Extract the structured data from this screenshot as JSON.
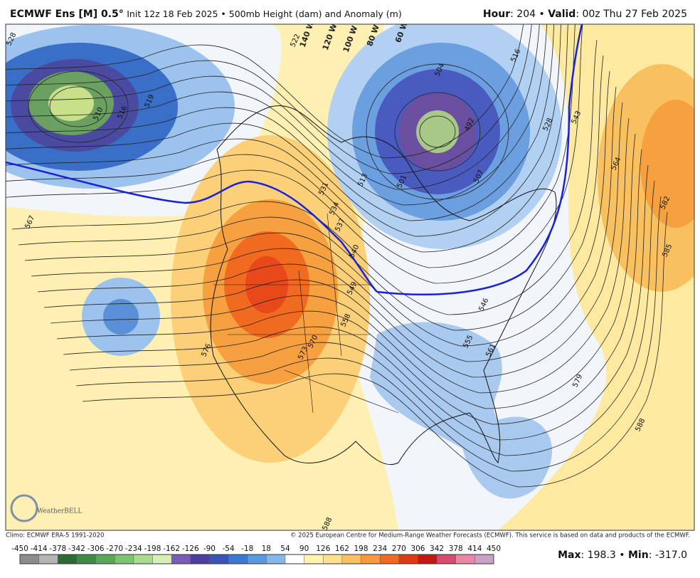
{
  "header": {
    "title": "ECMWF Ens [M] 0.5°",
    "subtitle": "Init 12z 18 Feb 2025 • 500mb Height (dam) and Anomaly (m)",
    "hour_label": "Hour",
    "hour_text": ": 204 • ",
    "valid_label": "Valid",
    "valid_text": ": 00z Thu 27 Feb 2025"
  },
  "map": {
    "contour_labels": [
      528,
      510,
      516,
      519,
      567,
      504,
      492,
      501,
      507,
      516,
      528,
      543,
      564,
      582,
      585,
      531,
      534,
      537,
      540,
      549,
      558,
      570,
      573,
      576,
      561,
      555,
      546,
      579,
      588,
      588,
      522,
      513
    ],
    "longitude_labels": [
      "140 W",
      "120 W",
      "100 W",
      "80 W",
      "60 W"
    ],
    "logo": "WeatherBELL"
  },
  "footer": {
    "climo": "Climo: ECMWF ERA-5 1991-2020",
    "copyright": "© 2025 European Centre for Medium-Range Weather Forecasts (ECMWF). This service is based on data and products of the ECMWF."
  },
  "colorbar": {
    "ticks": [
      -450,
      -414,
      -378,
      -342,
      -306,
      -270,
      -234,
      -198,
      -162,
      -126,
      -90,
      -54,
      -18,
      18,
      54,
      90,
      126,
      162,
      198,
      234,
      270,
      306,
      342,
      378,
      414,
      450
    ],
    "colors": [
      "#8c8c8c",
      "#b4b4b4",
      "#2e6b34",
      "#3f8a45",
      "#5aa85a",
      "#7cc470",
      "#a9dc8e",
      "#d5efb4",
      "#7a5bb5",
      "#4a3f9e",
      "#3a54b8",
      "#3d78d0",
      "#5a98e0",
      "#85b7ec",
      "#ffffff",
      "#fff3b0",
      "#fde08a",
      "#fbc060",
      "#f89a3c",
      "#f26a22",
      "#e03a12",
      "#c21a12",
      "#d94a6e",
      "#e888a6",
      "#c8a0c8"
    ]
  },
  "stats": {
    "max_label": "Max",
    "max": 198.3,
    "min_label": "Min",
    "min": {
      "value": -317,
      "label": "-317.0"
    }
  }
}
